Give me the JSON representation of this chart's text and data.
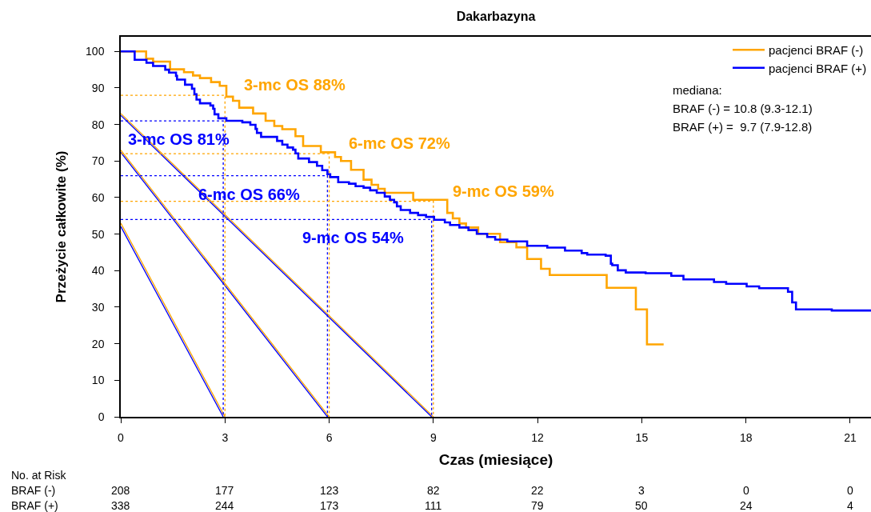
{
  "chart_data": {
    "type": "step",
    "title": "Dakarbazyna",
    "xlabel": "Czas (miesiące)",
    "ylabel": "Przeżycie całkowite (%)",
    "xlim": [
      0,
      21.6
    ],
    "xticks": [
      0,
      3,
      6,
      9,
      12,
      15,
      18,
      21
    ],
    "ylim": [
      0,
      104
    ],
    "yticks": [
      0,
      10,
      20,
      30,
      40,
      50,
      60,
      70,
      80,
      90,
      100
    ],
    "legend": "top right",
    "series": [
      {
        "type": "line",
        "color": "#ffa500",
        "x": [
          0,
          3
        ],
        "values": [
          53,
          0
        ]
      },
      {
        "type": "line",
        "color": "#0000ff",
        "x": [
          0,
          2.95
        ],
        "values": [
          52.1,
          0
        ]
      },
      {
        "type": "line",
        "color": "#ffa500",
        "x": [
          0,
          6
        ],
        "values": [
          73,
          0
        ]
      },
      {
        "type": "line",
        "color": "#0000ff",
        "x": [
          0,
          5.95
        ],
        "values": [
          72.4,
          0
        ]
      },
      {
        "type": "line",
        "color": "#ffa500",
        "x": [
          0,
          9
        ],
        "values": [
          83,
          0
        ]
      },
      {
        "type": "line",
        "color": "#0000ff",
        "x": [
          0,
          8.95
        ],
        "values": [
          82.5,
          0
        ]
      },
      {
        "type": "line",
        "line_style": "dotted",
        "color": "#ffa500",
        "x": [
          0,
          3,
          3
        ],
        "values": [
          88,
          88,
          0
        ]
      },
      {
        "type": "line",
        "line_style": "dotted",
        "color": "#0000ff",
        "x": [
          0,
          2.95,
          2.95
        ],
        "values": [
          81,
          81,
          0
        ]
      },
      {
        "type": "line",
        "line_style": "dotted",
        "color": "#ffa500",
        "x": [
          0,
          6,
          6
        ],
        "values": [
          72,
          72,
          0
        ]
      },
      {
        "type": "line",
        "line_style": "dotted",
        "color": "#0000ff",
        "x": [
          0,
          5.95,
          5.95
        ],
        "values": [
          66,
          66,
          0
        ]
      },
      {
        "type": "line",
        "line_style": "dotted",
        "color": "#ffa500",
        "x": [
          0,
          9,
          9
        ],
        "values": [
          59,
          59,
          0
        ]
      },
      {
        "type": "line",
        "line_style": "dotted",
        "color": "#0000ff",
        "x": [
          0,
          8.95,
          8.95
        ],
        "values": [
          54,
          54,
          0
        ]
      },
      {
        "name": "pacjenci BRAF (-)",
        "color": "#ffa500",
        "x": [
          0,
          0.73,
          0.93,
          1.42,
          1.82,
          2.08,
          2.28,
          2.6,
          2.85,
          3.04,
          3.23,
          3.41,
          3.81,
          4.17,
          4.42,
          4.65,
          5.03,
          5.25,
          5.76,
          6.17,
          6.34,
          6.63,
          6.99,
          7.22,
          7.41,
          7.6,
          8.42,
          9.4,
          9.56,
          9.75,
          9.94,
          10.29,
          10.92,
          11.39,
          11.7,
          12.1,
          12.35,
          13.99,
          14.83,
          15.15,
          15.63
        ],
        "values": [
          100,
          98,
          97.2,
          95.1,
          94.3,
          93.4,
          92.7,
          91.6,
          90.6,
          87.6,
          86.5,
          84.6,
          83,
          81,
          79.6,
          78.7,
          76.8,
          74.1,
          72.4,
          71.1,
          70,
          67.6,
          64.9,
          63.5,
          62.4,
          61.3,
          59.4,
          55.8,
          54.3,
          52.9,
          51.8,
          50.1,
          47.8,
          46.4,
          43.2,
          40.5,
          38.8,
          35.3,
          29.4,
          19.8,
          19.8
        ]
      },
      {
        "name": "pacjenci BRAF (+)",
        "color": "#0000ff",
        "x": [
          0,
          0.4,
          0.74,
          0.93,
          1.28,
          1.39,
          1.59,
          1.62,
          1.85,
          2.05,
          2.12,
          2.18,
          2.28,
          2.58,
          2.66,
          2.7,
          2.81,
          3.04,
          3.5,
          3.73,
          3.88,
          3.92,
          4.04,
          4.5,
          4.65,
          4.8,
          4.96,
          5.03,
          5.11,
          5.42,
          5.65,
          5.8,
          5.95,
          6.03,
          6.26,
          6.57,
          6.76,
          6.99,
          7.18,
          7.37,
          7.6,
          7.75,
          7.87,
          7.95,
          8.06,
          8.33,
          8.56,
          8.79,
          9.02,
          9.33,
          9.48,
          9.75,
          10.01,
          10.25,
          10.55,
          10.78,
          11.13,
          11.7,
          12.28,
          12.79,
          13.27,
          13.43,
          13.96,
          14.11,
          14.15,
          14.31,
          14.54,
          15.11,
          15.85,
          16.2,
          17.08,
          17.43,
          18.02,
          18.38,
          19.21,
          19.33,
          19.44,
          20.47,
          21.6
        ],
        "values": [
          100,
          97.7,
          96.9,
          96,
          95,
          94.2,
          93.3,
          92.3,
          90.9,
          89.8,
          88.3,
          86.8,
          85.8,
          85.2,
          84.3,
          82.8,
          81.7,
          81,
          80.6,
          79.9,
          78.8,
          77.7,
          76.6,
          75.5,
          74.5,
          73.7,
          73.1,
          72.1,
          70.7,
          69.7,
          68.7,
          67.5,
          66.4,
          65.6,
          64.2,
          63.8,
          63.1,
          62.7,
          62,
          61.3,
          60.3,
          59.4,
          58.7,
          57.6,
          56.6,
          55.8,
          55.2,
          54.7,
          53.9,
          53.2,
          52.5,
          51.8,
          51.1,
          50.1,
          49.2,
          48.5,
          48,
          46.8,
          46.3,
          45.5,
          44.8,
          44.4,
          44.1,
          41.9,
          41.5,
          40.1,
          39.5,
          39.3,
          38.6,
          37.6,
          36.9,
          36.4,
          35.7,
          35.2,
          34.2,
          31.3,
          29.4,
          29.1,
          29.1
        ]
      }
    ],
    "annotations": [
      "mediana:",
      "BRAF (-) = 10.8 (9.3-12.1)",
      "BRAF (+) =  9.7 (7.9-12.8)",
      {
        "text": "3-mc OS 88%",
        "x": 3,
        "y": 88
      },
      {
        "text": "3-mc OS 81%",
        "x": 3,
        "y": 81
      },
      {
        "text": "6-mc OS 72%",
        "x": 6,
        "y": 72
      },
      {
        "text": "6-mc OS 66%",
        "x": 6,
        "y": 66
      },
      {
        "text": "9-mc OS 59%",
        "x": 9,
        "y": 59
      },
      {
        "text": "9-mc OS 54%",
        "x": 9,
        "y": 54
      },
      "No. at Risk",
      "BRAF (-)",
      "208",
      "177",
      "123",
      "82",
      "22",
      "3",
      "0",
      "0",
      "BRAF (+)",
      "338",
      "244",
      "173",
      "111",
      "79",
      "50",
      "24",
      "4"
    ]
  }
}
